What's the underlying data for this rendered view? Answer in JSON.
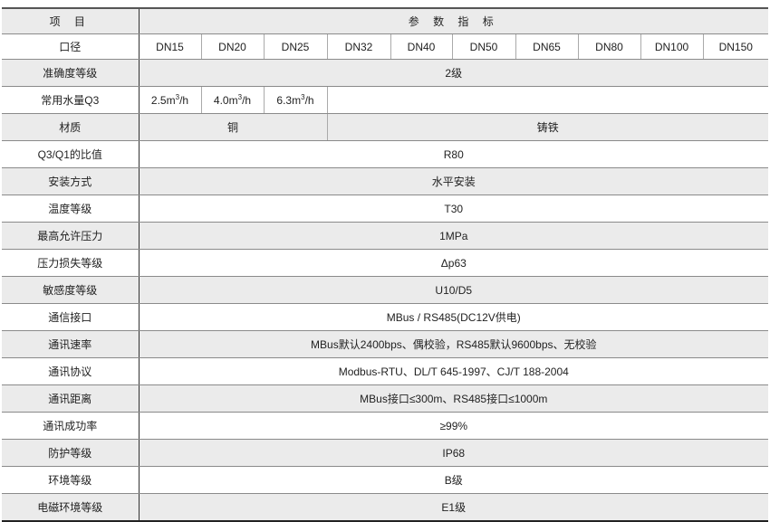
{
  "header": {
    "item": "项 目",
    "params": "参 数 指 标"
  },
  "diameter": {
    "label": "口径",
    "values": [
      "DN15",
      "DN20",
      "DN25",
      "DN32",
      "DN40",
      "DN50",
      "DN65",
      "DN80",
      "DN100",
      "DN150"
    ]
  },
  "accuracy": {
    "label": "准确度等级",
    "value": "2级"
  },
  "flow_q3": {
    "label": "常用水量Q3",
    "values": [
      {
        "num": "2.5m",
        "sup": "3",
        "unit": "/h"
      },
      {
        "num": "4.0m",
        "sup": "3",
        "unit": "/h"
      },
      {
        "num": "6.3m",
        "sup": "3",
        "unit": "/h"
      }
    ]
  },
  "material": {
    "label": "材质",
    "copper": "铜",
    "cast_iron": "铸铁"
  },
  "rows": [
    {
      "label": "Q3/Q1的比值",
      "value": "R80"
    },
    {
      "label": "安装方式",
      "value": "水平安装"
    },
    {
      "label": "温度等级",
      "value": "T30"
    },
    {
      "label": "最高允许压力",
      "value": "1MPa"
    },
    {
      "label": "压力损失等级",
      "value": "Δp63"
    },
    {
      "label": "敏感度等级",
      "value": "U10/D5"
    },
    {
      "label": "通信接口",
      "value": "MBus / RS485(DC12V供电)"
    },
    {
      "label": "通讯速率",
      "value": "MBus默认2400bps、偶校验，RS485默认9600bps、无校验"
    },
    {
      "label": "通讯协议",
      "value": "Modbus-RTU、DL/T 645-1997、CJ/T 188-2004"
    },
    {
      "label": "通讯距离",
      "value": "MBus接口≤300m、RS485接口≤1000m"
    },
    {
      "label": "通讯成功率",
      "value": "≥99%"
    },
    {
      "label": "防护等级",
      "value": "IP68"
    },
    {
      "label": "环境等级",
      "value": "B级"
    },
    {
      "label": "电磁环境等级",
      "value": "E1级"
    }
  ]
}
